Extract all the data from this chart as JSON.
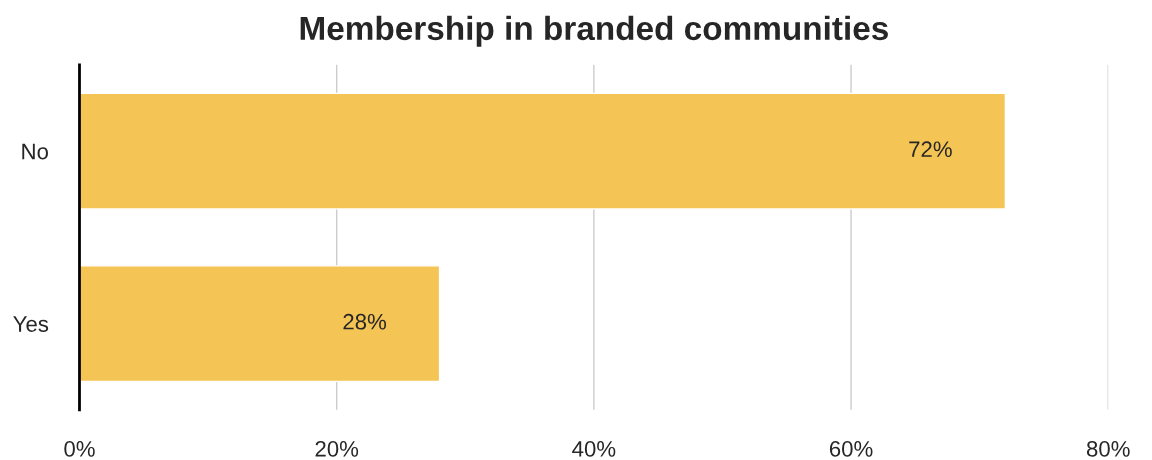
{
  "chart_data": {
    "type": "bar",
    "orientation": "horizontal",
    "title": "Membership in branded communities",
    "categories": [
      "No",
      "Yes"
    ],
    "values": [
      72,
      28
    ],
    "value_labels": [
      "72%",
      "28%"
    ],
    "color": "#f4c454",
    "xlim": [
      0,
      80
    ],
    "xticks": [
      {
        "value": 0,
        "label": "0%"
      },
      {
        "value": 20,
        "label": "20%"
      },
      {
        "value": 40,
        "label": "40%"
      },
      {
        "value": 60,
        "label": "60%"
      },
      {
        "value": 80,
        "label": "80%"
      }
    ],
    "grid": "x",
    "legend": false
  }
}
